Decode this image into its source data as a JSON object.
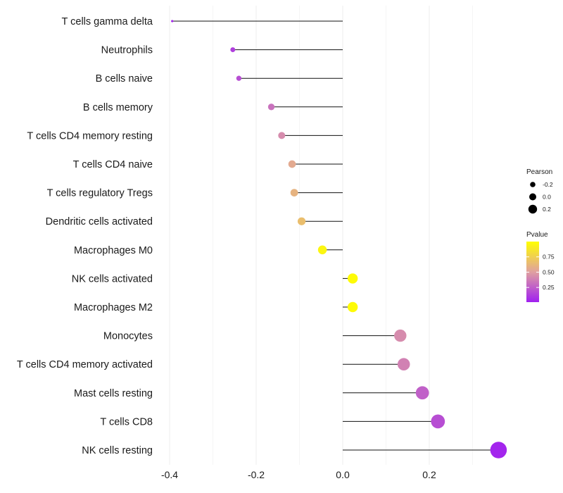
{
  "chart_data": {
    "type": "lollipop",
    "title": "",
    "xlabel": "",
    "ylabel": "",
    "xlim": [
      -0.4,
      0.36
    ],
    "x_ticks": [
      -0.4,
      -0.2,
      0.0,
      0.2
    ],
    "x_tick_labels": [
      "-0.4",
      "-0.2",
      "0.0",
      "0.2"
    ],
    "grid": true,
    "categories": [
      "T cells gamma delta",
      "Neutrophils",
      "B cells naive",
      "B cells memory",
      "T cells CD4 memory resting",
      "T cells CD4 naive",
      "T cells regulatory  Tregs ",
      "Dendritic cells activated",
      "Macrophages M0",
      "NK cells activated",
      "Macrophages M2",
      "Monocytes",
      "T cells CD4 memory activated",
      "Mast cells resting",
      "T cells CD8",
      "NK cells resting"
    ],
    "pearson": [
      -0.394,
      -0.254,
      -0.24,
      -0.165,
      -0.141,
      -0.117,
      -0.112,
      -0.095,
      -0.047,
      0.023,
      0.023,
      0.133,
      0.141,
      0.184,
      0.22,
      0.36
    ],
    "pvalue": [
      0.02,
      0.12,
      0.18,
      0.32,
      0.42,
      0.55,
      0.6,
      0.66,
      0.95,
      0.98,
      0.98,
      0.42,
      0.38,
      0.25,
      0.18,
      0.02
    ],
    "legend": {
      "position": "right",
      "size": {
        "title": "Pearson",
        "entries": [
          {
            "label": "-0.2",
            "value": -0.2
          },
          {
            "label": "0.0",
            "value": 0.0
          },
          {
            "label": "0.2",
            "value": 0.2
          }
        ]
      },
      "color": {
        "title": "Pvalue",
        "ticks": [
          {
            "label": "0.75",
            "value": 0.75
          },
          {
            "label": "0.50",
            "value": 0.5
          },
          {
            "label": "0.25",
            "value": 0.25
          }
        ],
        "colors": [
          "#a020f0",
          "#e0a0a0",
          "#ffff00"
        ]
      }
    }
  }
}
